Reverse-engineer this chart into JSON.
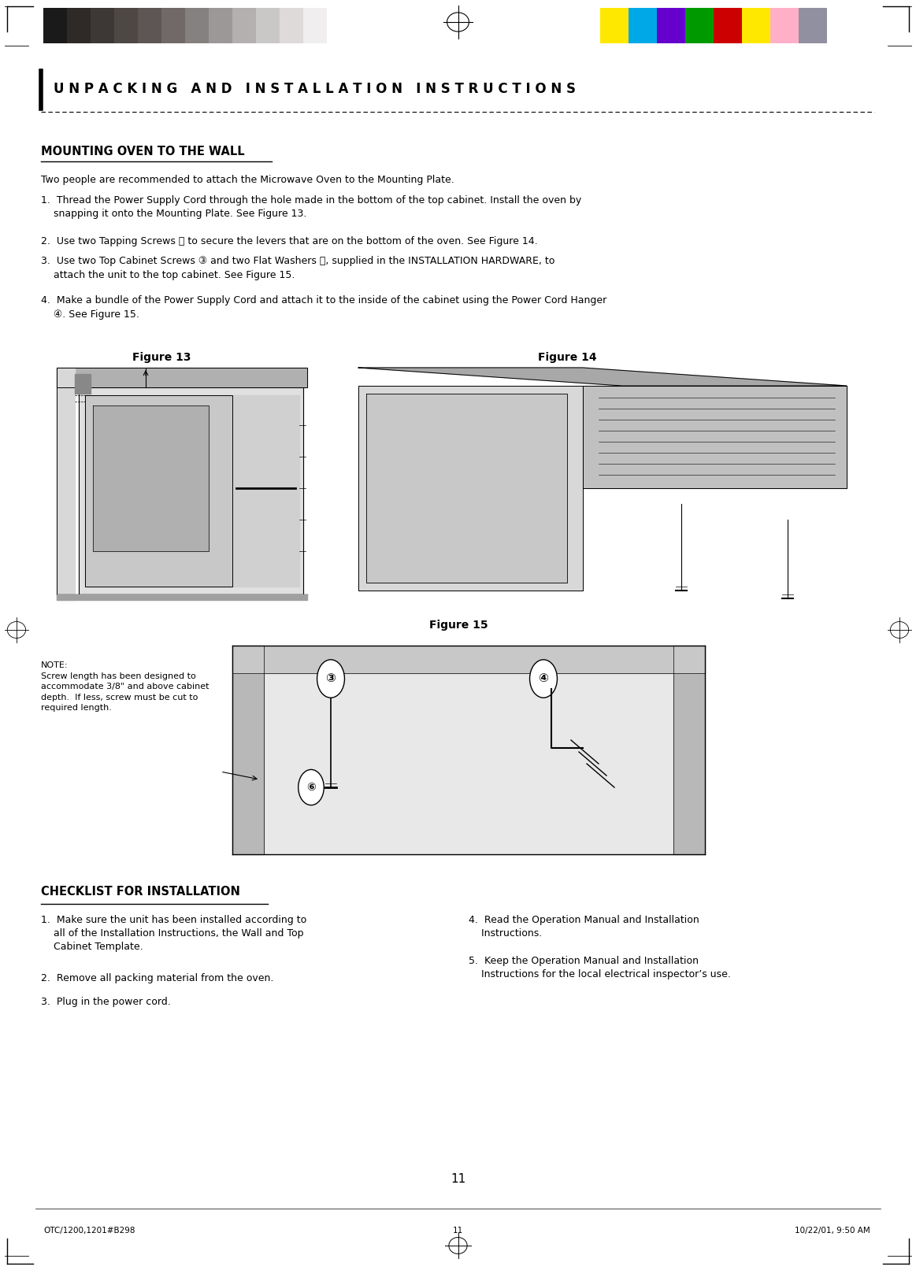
{
  "page_width": 11.63,
  "page_height": 16.13,
  "bg_color": "#ffffff",
  "header_color_bars_left": [
    "#1a1a1a",
    "#2d2a28",
    "#3d3836",
    "#4e4845",
    "#5e5654",
    "#706967",
    "#858180",
    "#9b9897",
    "#b3b0af",
    "#cac8c7",
    "#dedad9",
    "#f0eeee"
  ],
  "header_color_bars_right": [
    "#ffe800",
    "#00a8e8",
    "#6600cc",
    "#009a00",
    "#cc0000",
    "#ffe800",
    "#ffb0c8",
    "#9090a0"
  ],
  "title_text": "U N P A C K I N G   A N D   I N S T A L L A T I O N   I N S T R U C T I O N S",
  "section_title": "MOUNTING OVEN TO THE WALL",
  "intro_text": "Two people are recommended to attach the Microwave Oven to the Mounting Plate.",
  "step1": "1.  Thread the Power Supply Cord through the hole made in the bottom of the top cabinet. Install the oven by\n    snapping it onto the Mounting Plate. See Figure 13.",
  "step2": "2.  Use two Tapping Screws ⓤ to secure the levers that are on the bottom of the oven. See Figure 14.",
  "step3": "3.  Use two Top Cabinet Screws ③ and two Flat Washers ⓥ, supplied in the INSTALLATION HARDWARE, to\n    attach the unit to the top cabinet. See Figure 15.",
  "step4": "4.  Make a bundle of the Power Supply Cord and attach it to the inside of the cabinet using the Power Cord Hanger\n    ④. See Figure 15.",
  "fig13_label": "Figure 13",
  "fig14_label": "Figure 14",
  "fig15_label": "Figure 15",
  "note_text": "NOTE:\nScrew length has been designed to\naccommodate 3/8\" and above cabinet\ndepth.  If less, screw must be cut to\nrequired length.",
  "checklist_title": "CHECKLIST FOR INSTALLATION",
  "cl1": "1.  Make sure the unit has been installed according to\n    all of the Installation Instructions, the Wall and Top\n    Cabinet Template.",
  "cl2": "2.  Remove all packing material from the oven.",
  "cl3": "3.  Plug in the power cord.",
  "cr4": "4.  Read the Operation Manual and Installation\n    Instructions.",
  "cr5": "5.  Keep the Operation Manual and Installation\n    Instructions for the local electrical inspector’s use.",
  "page_number": "11",
  "footer_left": "OTC/1200,1201#B298",
  "footer_mid": "11",
  "footer_right": "10/22/01, 9:50 AM"
}
